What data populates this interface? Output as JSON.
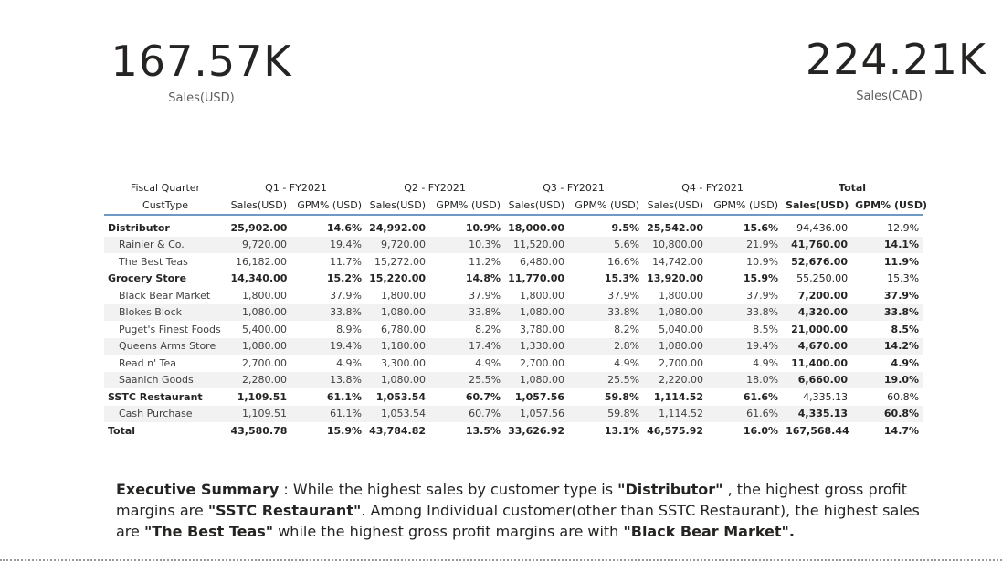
{
  "kpis": {
    "usd": {
      "value": "167.57K",
      "label": "Sales(USD)"
    },
    "cad": {
      "value": "224.21K",
      "label": "Sales(CAD)"
    }
  },
  "matrix": {
    "header_row1_label": "Fiscal Quarter",
    "header_row2_label": "CustType",
    "quarters": [
      "Q1 - FY2021",
      "Q2 - FY2021",
      "Q3 - FY2021",
      "Q4 - FY2021",
      "Total"
    ],
    "measures": [
      "Sales(USD)",
      "GPM% (USD)"
    ],
    "rows": [
      {
        "label": "Distributor",
        "type": "group",
        "cells": [
          "25,902.00",
          "14.6%",
          "24,992.00",
          "10.9%",
          "18,000.00",
          "9.5%",
          "25,542.00",
          "15.6%",
          "94,436.00",
          "12.9%"
        ]
      },
      {
        "label": "Rainier & Co.",
        "type": "child",
        "cells": [
          "9,720.00",
          "19.4%",
          "9,720.00",
          "10.3%",
          "11,520.00",
          "5.6%",
          "10,800.00",
          "21.9%",
          "41,760.00",
          "14.1%"
        ]
      },
      {
        "label": "The Best Teas",
        "type": "child",
        "cells": [
          "16,182.00",
          "11.7%",
          "15,272.00",
          "11.2%",
          "6,480.00",
          "16.6%",
          "14,742.00",
          "10.9%",
          "52,676.00",
          "11.9%"
        ]
      },
      {
        "label": "Grocery Store",
        "type": "group",
        "cells": [
          "14,340.00",
          "15.2%",
          "15,220.00",
          "14.8%",
          "11,770.00",
          "15.3%",
          "13,920.00",
          "15.9%",
          "55,250.00",
          "15.3%"
        ]
      },
      {
        "label": "Black Bear Market",
        "type": "child",
        "cells": [
          "1,800.00",
          "37.9%",
          "1,800.00",
          "37.9%",
          "1,800.00",
          "37.9%",
          "1,800.00",
          "37.9%",
          "7,200.00",
          "37.9%"
        ]
      },
      {
        "label": "Blokes Block",
        "type": "child",
        "cells": [
          "1,080.00",
          "33.8%",
          "1,080.00",
          "33.8%",
          "1,080.00",
          "33.8%",
          "1,080.00",
          "33.8%",
          "4,320.00",
          "33.8%"
        ]
      },
      {
        "label": "Puget's Finest Foods",
        "type": "child",
        "cells": [
          "5,400.00",
          "8.9%",
          "6,780.00",
          "8.2%",
          "3,780.00",
          "8.2%",
          "5,040.00",
          "8.5%",
          "21,000.00",
          "8.5%"
        ]
      },
      {
        "label": "Queens Arms Store",
        "type": "child",
        "cells": [
          "1,080.00",
          "19.4%",
          "1,180.00",
          "17.4%",
          "1,330.00",
          "2.8%",
          "1,080.00",
          "19.4%",
          "4,670.00",
          "14.2%"
        ]
      },
      {
        "label": "Read n' Tea",
        "type": "child",
        "cells": [
          "2,700.00",
          "4.9%",
          "3,300.00",
          "4.9%",
          "2,700.00",
          "4.9%",
          "2,700.00",
          "4.9%",
          "11,400.00",
          "4.9%"
        ]
      },
      {
        "label": "Saanich Goods",
        "type": "child",
        "cells": [
          "2,280.00",
          "13.8%",
          "1,080.00",
          "25.5%",
          "1,080.00",
          "25.5%",
          "2,220.00",
          "18.0%",
          "6,660.00",
          "19.0%"
        ]
      },
      {
        "label": "SSTC Restaurant",
        "type": "group",
        "cells": [
          "1,109.51",
          "61.1%",
          "1,053.54",
          "60.7%",
          "1,057.56",
          "59.8%",
          "1,114.52",
          "61.6%",
          "4,335.13",
          "60.8%"
        ]
      },
      {
        "label": "Cash Purchase",
        "type": "child",
        "cells": [
          "1,109.51",
          "61.1%",
          "1,053.54",
          "60.7%",
          "1,057.56",
          "59.8%",
          "1,114.52",
          "61.6%",
          "4,335.13",
          "60.8%"
        ]
      },
      {
        "label": "Total",
        "type": "total",
        "cells": [
          "43,580.78",
          "15.9%",
          "43,784.82",
          "13.5%",
          "33,626.92",
          "13.1%",
          "46,575.92",
          "16.0%",
          "167,568.44",
          "14.7%"
        ]
      }
    ]
  },
  "summary": {
    "lead": "Executive Summary",
    "t1": " : While the highest sales by customer type is ",
    "b1": "\"Distributor\"",
    "t2": " , the highest gross profit margins are ",
    "b2": "\"SSTC Restaurant\"",
    "t3": ". Among Individual customer(other than SSTC Restaurant), the highest sales are ",
    "b3": "\"The Best Teas\"",
    "t4": " while the highest gross profit margins are with ",
    "b4": "\"Black Bear Market\"."
  },
  "colors": {
    "accent": "#6e9ac6",
    "band": "#f2f2f2",
    "text": "#252423"
  }
}
